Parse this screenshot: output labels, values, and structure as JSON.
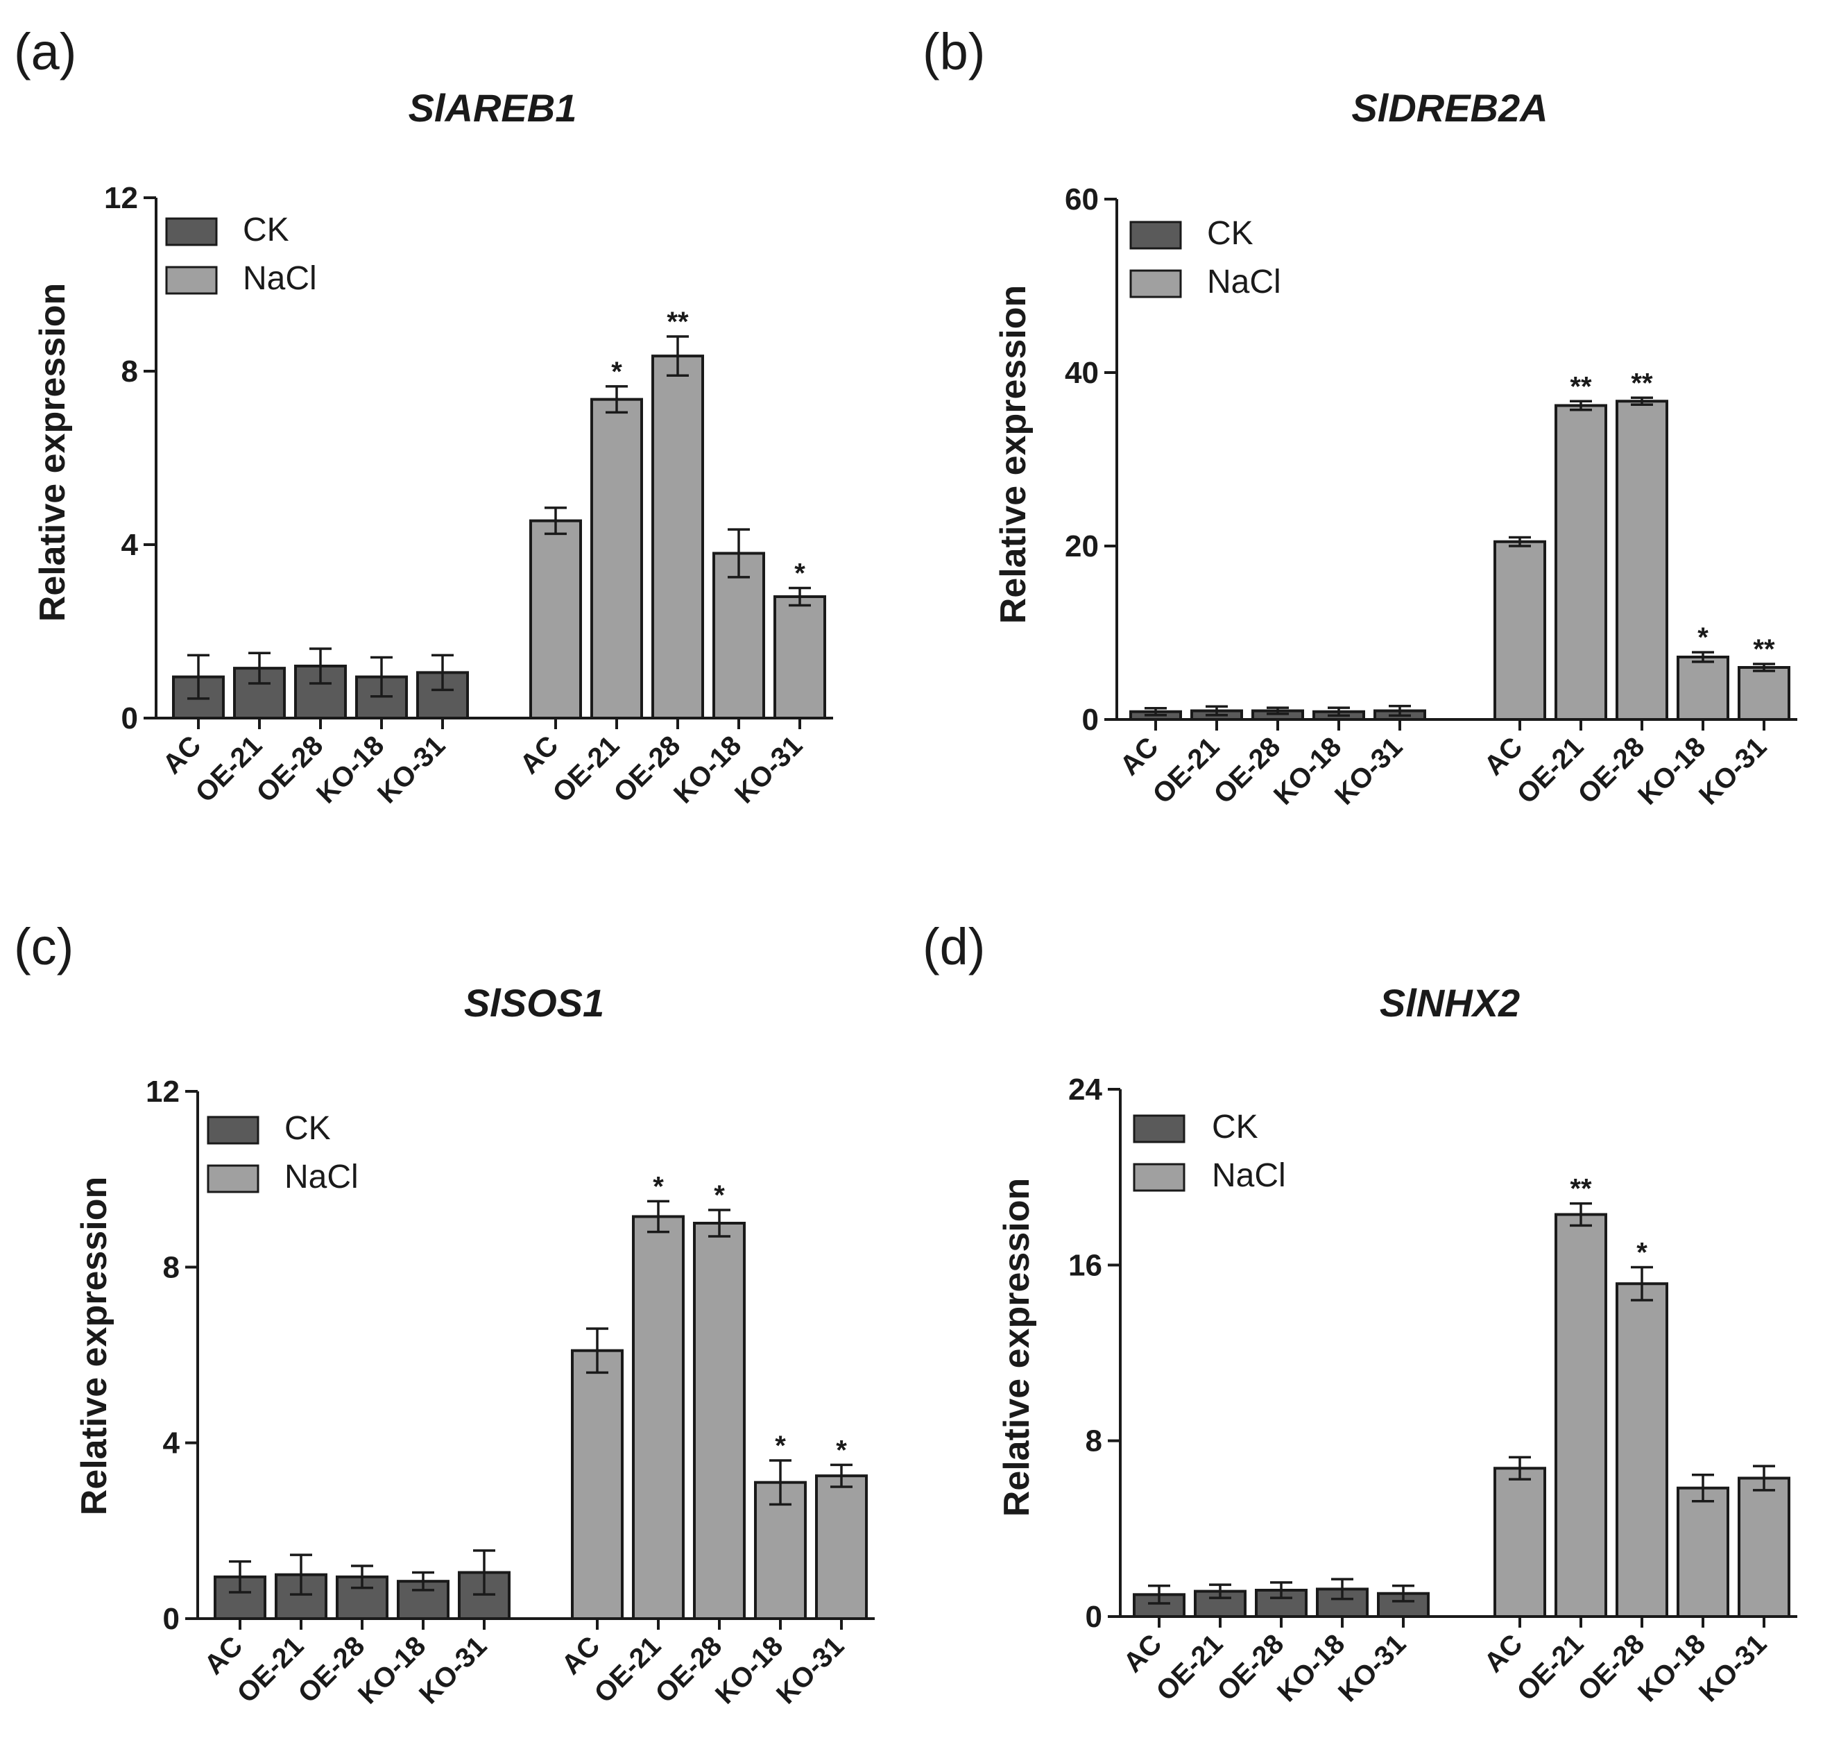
{
  "colors": {
    "ck": "#5a5a5a",
    "nacl": "#a0a0a0",
    "axis": "#1a1a1a",
    "background": "#ffffff"
  },
  "chart_data": [
    {
      "type": "bar",
      "panel": "(a)",
      "title": "SlAREB1",
      "xlabel": "",
      "ylabel": "Relative expression",
      "ylim": [
        0,
        12
      ],
      "yticks": [
        0,
        4,
        8,
        12
      ],
      "legend": [
        "CK",
        "NaCl"
      ],
      "legend_position": "top-left",
      "groups": [
        {
          "name": "CK",
          "categories": [
            "AC",
            "OE-21",
            "OE-28",
            "KO-18",
            "KO-31"
          ],
          "values": [
            0.95,
            1.15,
            1.2,
            0.95,
            1.05
          ],
          "errors": [
            0.5,
            0.35,
            0.4,
            0.45,
            0.4
          ],
          "sig": [
            "",
            "",
            "",
            "",
            ""
          ]
        },
        {
          "name": "NaCl",
          "categories": [
            "AC",
            "OE-21",
            "OE-28",
            "KO-18",
            "KO-31"
          ],
          "values": [
            4.55,
            7.35,
            8.35,
            3.8,
            2.8
          ],
          "errors": [
            0.3,
            0.3,
            0.45,
            0.55,
            0.2
          ],
          "sig": [
            "",
            "*",
            "**",
            "",
            "*"
          ]
        }
      ]
    },
    {
      "type": "bar",
      "panel": "(b)",
      "title": "SlDREB2A",
      "xlabel": "",
      "ylabel": "Relative expression",
      "ylim": [
        0,
        60
      ],
      "yticks": [
        0,
        20,
        40,
        60
      ],
      "legend": [
        "CK",
        "NaCl"
      ],
      "legend_position": "top-left",
      "groups": [
        {
          "name": "CK",
          "categories": [
            "AC",
            "OE-21",
            "OE-28",
            "KO-18",
            "KO-31"
          ],
          "values": [
            0.9,
            1.0,
            1.0,
            0.9,
            1.0
          ],
          "errors": [
            0.4,
            0.5,
            0.35,
            0.45,
            0.55
          ],
          "sig": [
            "",
            "",
            "",
            "",
            ""
          ]
        },
        {
          "name": "NaCl",
          "categories": [
            "AC",
            "OE-21",
            "OE-28",
            "KO-18",
            "KO-31"
          ],
          "values": [
            20.5,
            36.2,
            36.7,
            7.2,
            6.0
          ],
          "errors": [
            0.5,
            0.5,
            0.4,
            0.55,
            0.4
          ],
          "sig": [
            "",
            "**",
            "**",
            "*",
            "**"
          ]
        }
      ]
    },
    {
      "type": "bar",
      "panel": "(c)",
      "title": "SlSOS1",
      "xlabel": "",
      "ylabel": "Relative expression",
      "ylim": [
        0,
        12
      ],
      "yticks": [
        0,
        4,
        8,
        12
      ],
      "legend": [
        "CK",
        "NaCl"
      ],
      "legend_position": "top-left",
      "groups": [
        {
          "name": "CK",
          "categories": [
            "AC",
            "OE-21",
            "OE-28",
            "KO-18",
            "KO-31"
          ],
          "values": [
            0.95,
            1.0,
            0.95,
            0.85,
            1.05
          ],
          "errors": [
            0.35,
            0.45,
            0.25,
            0.2,
            0.5
          ],
          "sig": [
            "",
            "",
            "",
            "",
            ""
          ]
        },
        {
          "name": "NaCl",
          "categories": [
            "AC",
            "OE-21",
            "OE-28",
            "KO-18",
            "KO-31"
          ],
          "values": [
            6.1,
            9.15,
            9.0,
            3.1,
            3.25
          ],
          "errors": [
            0.5,
            0.35,
            0.3,
            0.5,
            0.25
          ],
          "sig": [
            "",
            "*",
            "*",
            "*",
            "*"
          ]
        }
      ]
    },
    {
      "type": "bar",
      "panel": "(d)",
      "title": "SlNHX2",
      "xlabel": "",
      "ylabel": "Relative expression",
      "ylim": [
        0,
        24
      ],
      "yticks": [
        0,
        8,
        16,
        24
      ],
      "legend": [
        "CK",
        "NaCl"
      ],
      "legend_position": "top-left",
      "groups": [
        {
          "name": "CK",
          "categories": [
            "AC",
            "OE-21",
            "OE-28",
            "KO-18",
            "KO-31"
          ],
          "values": [
            1.0,
            1.15,
            1.2,
            1.25,
            1.05
          ],
          "errors": [
            0.4,
            0.3,
            0.35,
            0.45,
            0.35
          ],
          "sig": [
            "",
            "",
            "",
            "",
            ""
          ]
        },
        {
          "name": "NaCl",
          "categories": [
            "AC",
            "OE-21",
            "OE-28",
            "KO-18",
            "KO-31"
          ],
          "values": [
            6.75,
            18.3,
            15.15,
            5.85,
            6.3
          ],
          "errors": [
            0.5,
            0.5,
            0.75,
            0.6,
            0.55
          ],
          "sig": [
            "",
            "**",
            "*",
            "",
            ""
          ]
        }
      ]
    }
  ]
}
